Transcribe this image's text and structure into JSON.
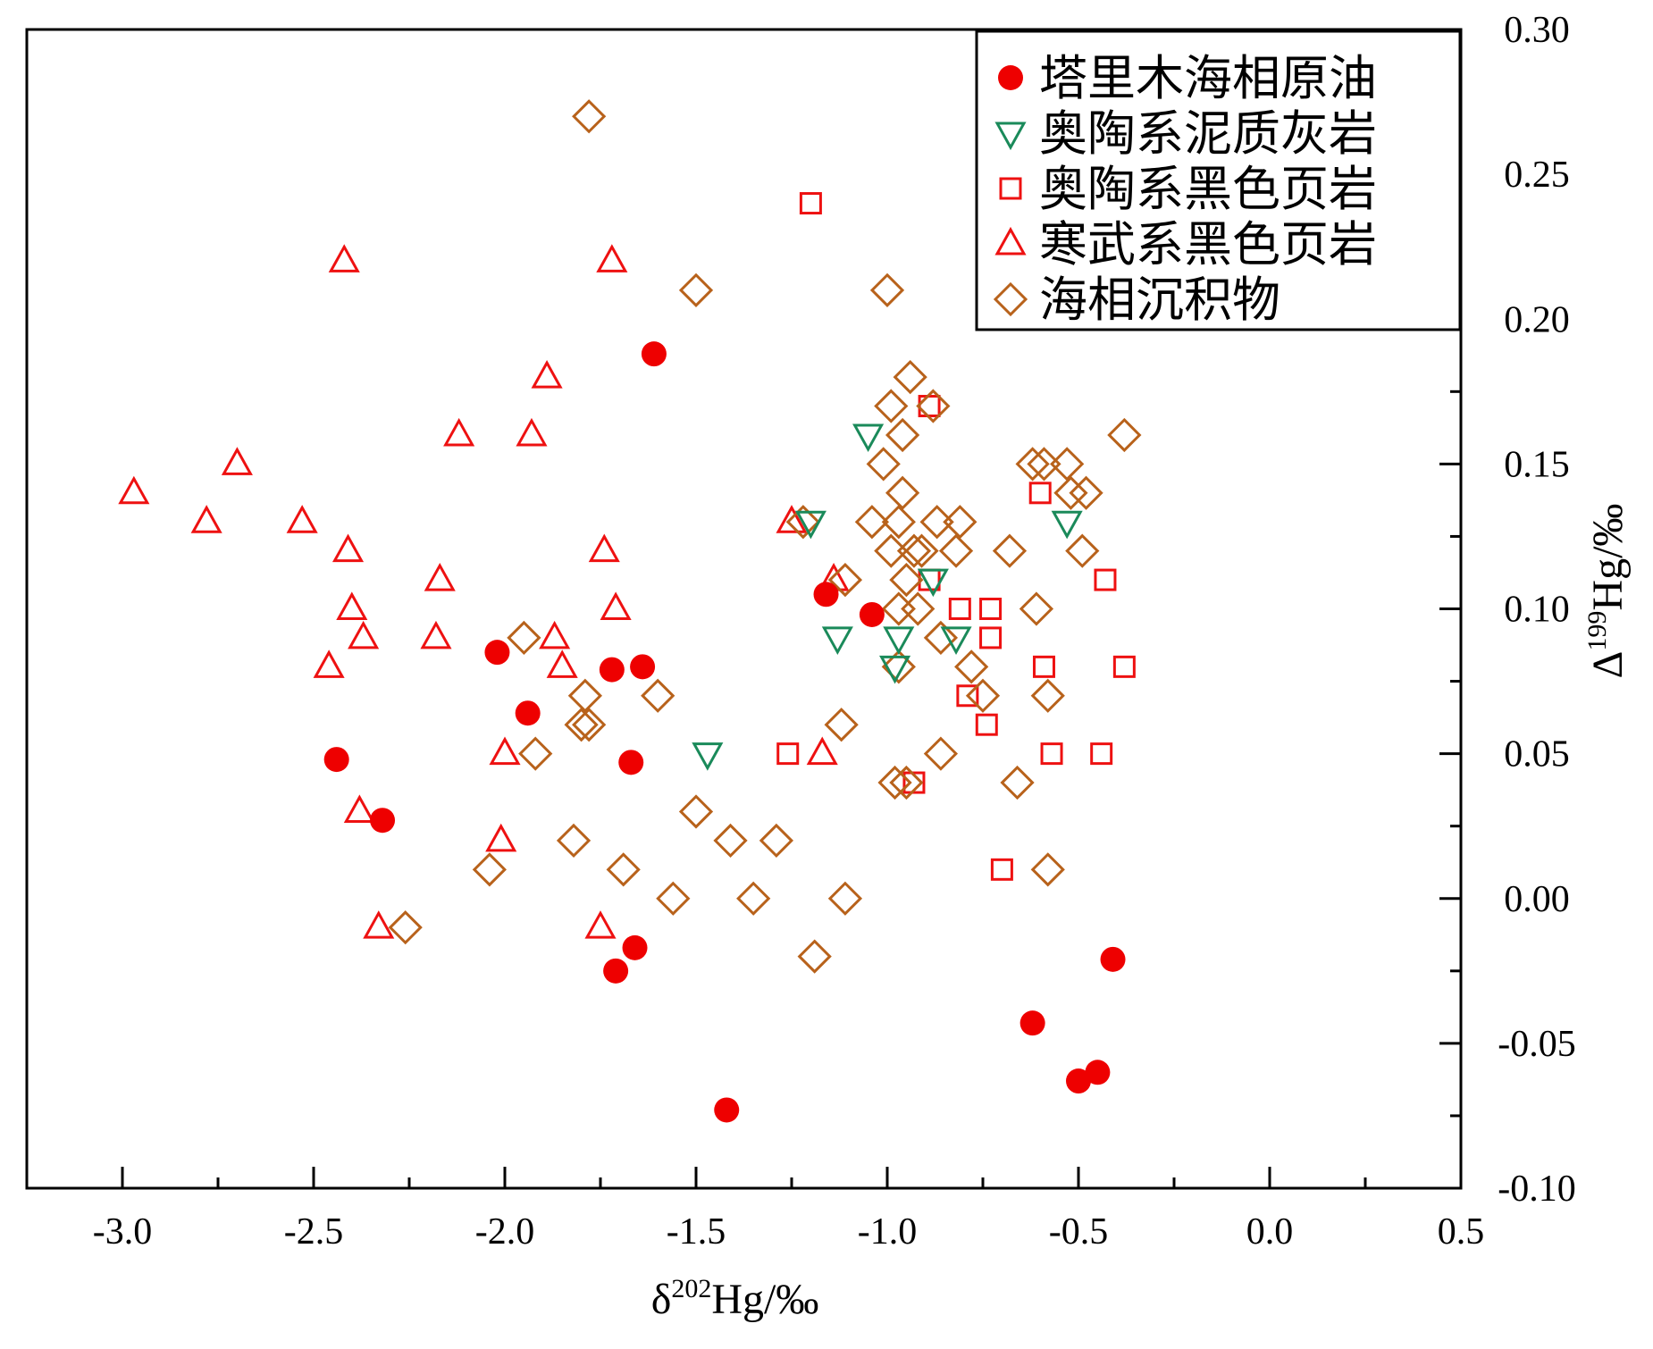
{
  "chart_data": {
    "type": "scatter",
    "xlabel": "δ202Hg/‰",
    "ylabel": "Δ199Hg/‰",
    "xlabel_parts": {
      "prefix": "δ",
      "sup": "202",
      "suffix": "Hg/‰"
    },
    "ylabel_parts": {
      "prefix": "Δ",
      "sup": "199",
      "suffix": "Hg/‰"
    },
    "xlim": [
      -3.25,
      0.5
    ],
    "ylim": [
      -0.1,
      0.3
    ],
    "y_axis_side": "right",
    "grid": false,
    "legend_position": "top-right",
    "x_ticks": [
      {
        "value": -3.0,
        "label": "-3.0"
      },
      {
        "value": -2.5,
        "label": "-2.5"
      },
      {
        "value": -2.0,
        "label": "-2.0"
      },
      {
        "value": -1.5,
        "label": "-1.5"
      },
      {
        "value": -1.0,
        "label": "-1.0"
      },
      {
        "value": -0.5,
        "label": "-0.5"
      },
      {
        "value": 0.0,
        "label": "0.0"
      },
      {
        "value": 0.5,
        "label": "0.5"
      }
    ],
    "y_ticks": [
      {
        "value": -0.1,
        "label": "-0.10"
      },
      {
        "value": -0.05,
        "label": "-0.05"
      },
      {
        "value": 0.0,
        "label": "0.00"
      },
      {
        "value": 0.05,
        "label": "0.05"
      },
      {
        "value": 0.1,
        "label": "0.10"
      },
      {
        "value": 0.15,
        "label": "0.15"
      },
      {
        "value": 0.2,
        "label": "0.20"
      },
      {
        "value": 0.25,
        "label": "0.25"
      },
      {
        "value": 0.3,
        "label": "0.30"
      }
    ],
    "series": [
      {
        "name": "塔里木海相原油",
        "marker": "filled-circle",
        "color": "#ee0000",
        "points": [
          [
            -1.61,
            0.188
          ],
          [
            -2.02,
            0.085
          ],
          [
            -1.72,
            0.079
          ],
          [
            -1.64,
            0.08
          ],
          [
            -1.94,
            0.064
          ],
          [
            -2.44,
            0.048
          ],
          [
            -2.32,
            0.027
          ],
          [
            -1.67,
            0.047
          ],
          [
            -1.16,
            0.105
          ],
          [
            -1.04,
            0.098
          ],
          [
            -1.71,
            -0.025
          ],
          [
            -1.66,
            -0.017
          ],
          [
            -1.42,
            -0.073
          ],
          [
            -0.41,
            -0.021
          ],
          [
            -0.62,
            -0.043
          ],
          [
            -0.5,
            -0.063
          ],
          [
            -0.45,
            -0.06
          ]
        ]
      },
      {
        "name": "奥陶系泥质灰岩",
        "marker": "down-triangle",
        "color": "#1a8a5a",
        "points": [
          [
            -1.47,
            0.05
          ],
          [
            -1.13,
            0.09
          ],
          [
            -0.97,
            0.09
          ],
          [
            -0.98,
            0.08
          ],
          [
            -1.05,
            0.16
          ],
          [
            -0.53,
            0.13
          ],
          [
            -1.2,
            0.13
          ],
          [
            -0.82,
            0.09
          ],
          [
            -0.88,
            0.11
          ]
        ]
      },
      {
        "name": "奥陶系黑色页岩",
        "marker": "open-square",
        "color": "#ee1111",
        "points": [
          [
            -1.2,
            0.24
          ],
          [
            -0.89,
            0.17
          ],
          [
            -0.6,
            0.14
          ],
          [
            -0.43,
            0.11
          ],
          [
            -0.89,
            0.11
          ],
          [
            -0.81,
            0.1
          ],
          [
            -0.73,
            0.1
          ],
          [
            -0.73,
            0.09
          ],
          [
            -0.59,
            0.08
          ],
          [
            -0.38,
            0.08
          ],
          [
            -0.79,
            0.07
          ],
          [
            -0.74,
            0.06
          ],
          [
            -1.26,
            0.05
          ],
          [
            -0.57,
            0.05
          ],
          [
            -0.44,
            0.05
          ],
          [
            -0.93,
            0.04
          ],
          [
            -0.7,
            0.01
          ]
        ]
      },
      {
        "name": "寒武系黑色页岩",
        "marker": "open-triangle",
        "color": "#ee1111",
        "points": [
          [
            -2.42,
            0.22
          ],
          [
            -1.72,
            0.22
          ],
          [
            -1.89,
            0.18
          ],
          [
            -2.12,
            0.16
          ],
          [
            -1.93,
            0.16
          ],
          [
            -2.7,
            0.15
          ],
          [
            -2.97,
            0.14
          ],
          [
            -2.78,
            0.13
          ],
          [
            -2.53,
            0.13
          ],
          [
            -2.41,
            0.12
          ],
          [
            -1.74,
            0.12
          ],
          [
            -1.25,
            0.13
          ],
          [
            -2.17,
            0.11
          ],
          [
            -2.4,
            0.1
          ],
          [
            -1.71,
            0.1
          ],
          [
            -2.37,
            0.09
          ],
          [
            -2.18,
            0.09
          ],
          [
            -1.87,
            0.09
          ],
          [
            -2.46,
            0.08
          ],
          [
            -1.85,
            0.08
          ],
          [
            -2.0,
            0.05
          ],
          [
            -1.17,
            0.05
          ],
          [
            -2.38,
            0.03
          ],
          [
            -2.01,
            0.02
          ],
          [
            -2.33,
            -0.01
          ],
          [
            -1.75,
            -0.01
          ],
          [
            -1.14,
            0.11
          ]
        ]
      },
      {
        "name": "海相沉积物",
        "marker": "open-diamond",
        "color": "#b8621b",
        "points": [
          [
            -1.78,
            0.27
          ],
          [
            -1.5,
            0.21
          ],
          [
            -1.0,
            0.21
          ],
          [
            -0.94,
            0.18
          ],
          [
            -0.99,
            0.17
          ],
          [
            -0.88,
            0.17
          ],
          [
            -0.96,
            0.16
          ],
          [
            -0.38,
            0.16
          ],
          [
            -1.01,
            0.15
          ],
          [
            -0.62,
            0.15
          ],
          [
            -0.53,
            0.15
          ],
          [
            -0.59,
            0.15
          ],
          [
            -0.96,
            0.14
          ],
          [
            -0.52,
            0.14
          ],
          [
            -0.48,
            0.14
          ],
          [
            -1.22,
            0.13
          ],
          [
            -1.04,
            0.13
          ],
          [
            -0.97,
            0.13
          ],
          [
            -0.87,
            0.13
          ],
          [
            -0.81,
            0.13
          ],
          [
            -0.99,
            0.12
          ],
          [
            -0.91,
            0.12
          ],
          [
            -0.82,
            0.12
          ],
          [
            -0.68,
            0.12
          ],
          [
            -0.49,
            0.12
          ],
          [
            -0.93,
            0.12
          ],
          [
            -1.11,
            0.11
          ],
          [
            -0.95,
            0.11
          ],
          [
            -0.97,
            0.1
          ],
          [
            -0.92,
            0.1
          ],
          [
            -0.61,
            0.1
          ],
          [
            -1.95,
            0.09
          ],
          [
            -0.86,
            0.09
          ],
          [
            -0.97,
            0.08
          ],
          [
            -0.78,
            0.08
          ],
          [
            -1.79,
            0.07
          ],
          [
            -1.6,
            0.07
          ],
          [
            -0.75,
            0.07
          ],
          [
            -0.58,
            0.07
          ],
          [
            -1.8,
            0.06
          ],
          [
            -1.78,
            0.06
          ],
          [
            -1.12,
            0.06
          ],
          [
            -1.92,
            0.05
          ],
          [
            -0.86,
            0.05
          ],
          [
            -0.98,
            0.04
          ],
          [
            -0.95,
            0.04
          ],
          [
            -0.66,
            0.04
          ],
          [
            -1.5,
            0.03
          ],
          [
            -1.82,
            0.02
          ],
          [
            -1.41,
            0.02
          ],
          [
            -1.29,
            0.02
          ],
          [
            -2.04,
            0.01
          ],
          [
            -1.69,
            0.01
          ],
          [
            -0.58,
            0.01
          ],
          [
            -2.26,
            -0.01
          ],
          [
            -1.56,
            0.0
          ],
          [
            -1.35,
            0.0
          ],
          [
            -1.11,
            0.0
          ],
          [
            -1.19,
            -0.02
          ]
        ]
      }
    ]
  }
}
